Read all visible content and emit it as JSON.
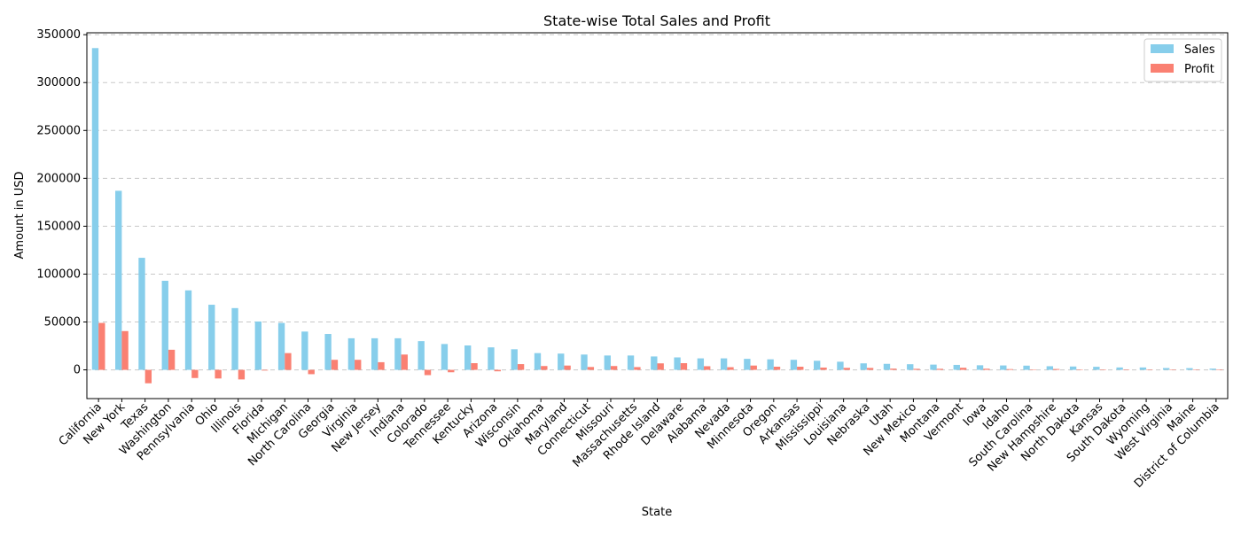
{
  "chart_data": {
    "type": "bar",
    "title": "State-wise Total Sales and Profit",
    "xlabel": "State",
    "ylabel": "Amount in USD",
    "ylim": [
      -30000,
      352000
    ],
    "yticks": [
      0,
      50000,
      100000,
      150000,
      200000,
      250000,
      300000,
      350000
    ],
    "grid": true,
    "legend_position": "top-right",
    "categories": [
      "California",
      "New York",
      "Texas",
      "Washington",
      "Pennsylvania",
      "Ohio",
      "Illinois",
      "Florida",
      "Michigan",
      "North Carolina",
      "Georgia",
      "Virginia",
      "New Jersey",
      "Indiana",
      "Colorado",
      "Tennessee",
      "Kentucky",
      "Arizona",
      "Wisconsin",
      "Oklahoma",
      "Maryland",
      "Connecticut",
      "Missouri",
      "Massachusetts",
      "Rhode Island",
      "Delaware",
      "Alabama",
      "Nevada",
      "Minnesota",
      "Oregon",
      "Arkansas",
      "Mississippi",
      "Louisiana",
      "Nebraska",
      "Utah",
      "New Mexico",
      "Montana",
      "Vermont",
      "Iowa",
      "Idaho",
      "South Carolina",
      "New Hampshire",
      "North Dakota",
      "Kansas",
      "South Dakota",
      "Wyoming",
      "West Virginia",
      "Maine",
      "District of Columbia"
    ],
    "series": [
      {
        "name": "Sales",
        "color": "#87ceeb",
        "values": [
          336000,
          187000,
          117000,
          93000,
          83000,
          68000,
          64500,
          50500,
          49000,
          40000,
          37500,
          33000,
          33000,
          33000,
          30000,
          27000,
          25500,
          23500,
          21500,
          17500,
          17000,
          16000,
          15000,
          15000,
          14000,
          13000,
          12000,
          12000,
          11500,
          11000,
          10500,
          9500,
          8500,
          6800,
          6300,
          5900,
          5500,
          5200,
          4800,
          4600,
          4400,
          3800,
          3500,
          3200,
          2500,
          2500,
          1900,
          1800,
          1300
        ]
      },
      {
        "name": "Profit",
        "color": "#fa8072",
        "values": [
          49000,
          40500,
          -14000,
          21000,
          -8500,
          -9000,
          -10000,
          -700,
          17500,
          -4500,
          10500,
          10500,
          8000,
          16000,
          -5500,
          -2500,
          7000,
          -1500,
          6000,
          4000,
          4500,
          3000,
          4000,
          2900,
          6800,
          7000,
          3800,
          2800,
          4500,
          3300,
          3300,
          2400,
          2100,
          2000,
          1300,
          1100,
          1100,
          2200,
          1200,
          800,
          200,
          900,
          200,
          200,
          300,
          200,
          200,
          400,
          500
        ]
      }
    ]
  }
}
